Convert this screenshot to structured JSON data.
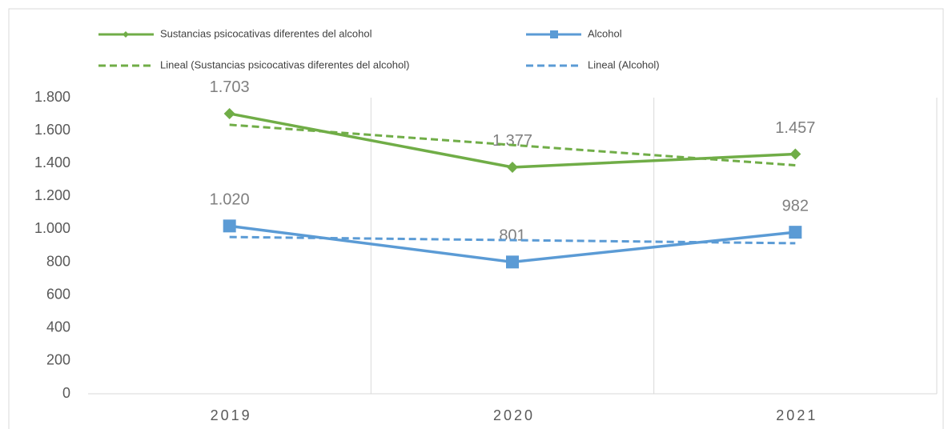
{
  "chart_data": {
    "type": "line",
    "categories": [
      "2019",
      "2020",
      "2021"
    ],
    "series": [
      {
        "name": "Sustancias psicocativas diferentes del alcohol",
        "color": "#70ad47",
        "marker": "diamond",
        "values": [
          1703,
          1377,
          1457
        ],
        "value_labels": [
          "1.703",
          "1.377",
          "1.457"
        ]
      },
      {
        "name": "Alcohol",
        "color": "#5b9bd5",
        "marker": "square",
        "values": [
          1020,
          801,
          982
        ],
        "value_labels": [
          "1.020",
          "801",
          "982"
        ]
      },
      {
        "name": "Lineal (Sustancias psicocativas diferentes del alcohol)",
        "color": "#70ad47",
        "dashed": true,
        "values": [
          1635,
          1512,
          1389
        ]
      },
      {
        "name": "Lineal (Alcohol)",
        "color": "#5b9bd5",
        "dashed": true,
        "values": [
          953,
          934,
          915
        ]
      }
    ],
    "ylim": [
      0,
      1800
    ],
    "yticks": [
      0,
      200,
      400,
      600,
      800,
      {
        "value": 1000,
        "label": "1.000"
      },
      {
        "value": 1200,
        "label": "1.200"
      },
      {
        "value": 1400,
        "label": "1.400"
      },
      {
        "value": 1600,
        "label": "1.600"
      },
      {
        "value": 1800,
        "label": "1.800"
      }
    ],
    "legend": "top"
  }
}
